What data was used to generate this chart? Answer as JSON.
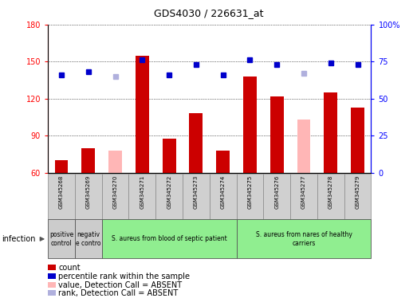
{
  "title": "GDS4030 / 226631_at",
  "samples": [
    "GSM345268",
    "GSM345269",
    "GSM345270",
    "GSM345271",
    "GSM345272",
    "GSM345273",
    "GSM345274",
    "GSM345275",
    "GSM345276",
    "GSM345277",
    "GSM345278",
    "GSM345279"
  ],
  "count_values": [
    70,
    80,
    null,
    155,
    88,
    108,
    78,
    138,
    122,
    null,
    125,
    113
  ],
  "count_absent": [
    null,
    null,
    78,
    null,
    null,
    null,
    null,
    null,
    null,
    103,
    null,
    null
  ],
  "rank_values": [
    66,
    68,
    null,
    76,
    66,
    73,
    66,
    76,
    73,
    null,
    74,
    73
  ],
  "rank_absent": [
    null,
    null,
    65,
    null,
    null,
    null,
    null,
    null,
    null,
    67,
    null,
    null
  ],
  "ylim_left": [
    60,
    180
  ],
  "ylim_right": [
    0,
    100
  ],
  "yticks_left": [
    60,
    90,
    120,
    150,
    180
  ],
  "yticks_right": [
    0,
    25,
    50,
    75,
    100
  ],
  "bar_color": "#cc0000",
  "bar_absent_color": "#ffb6b6",
  "rank_color": "#0000cc",
  "rank_absent_color": "#b0b0dd",
  "groups": [
    {
      "label": "positive\ncontrol",
      "start": 0,
      "end": 1,
      "color": "#cccccc"
    },
    {
      "label": "negativ\ne contro",
      "start": 1,
      "end": 2,
      "color": "#cccccc"
    },
    {
      "label": "S. aureus from blood of septic patient",
      "start": 2,
      "end": 7,
      "color": "#90ee90"
    },
    {
      "label": "S. aureus from nares of healthy\ncarriers",
      "start": 7,
      "end": 12,
      "color": "#90ee90"
    }
  ],
  "infection_label": "infection",
  "legend_items": [
    {
      "label": "count",
      "color": "#cc0000"
    },
    {
      "label": "percentile rank within the sample",
      "color": "#0000cc"
    },
    {
      "label": "value, Detection Call = ABSENT",
      "color": "#ffb6b6"
    },
    {
      "label": "rank, Detection Call = ABSENT",
      "color": "#b0b0dd"
    }
  ],
  "figsize": [
    5.23,
    3.84
  ],
  "dpi": 100
}
